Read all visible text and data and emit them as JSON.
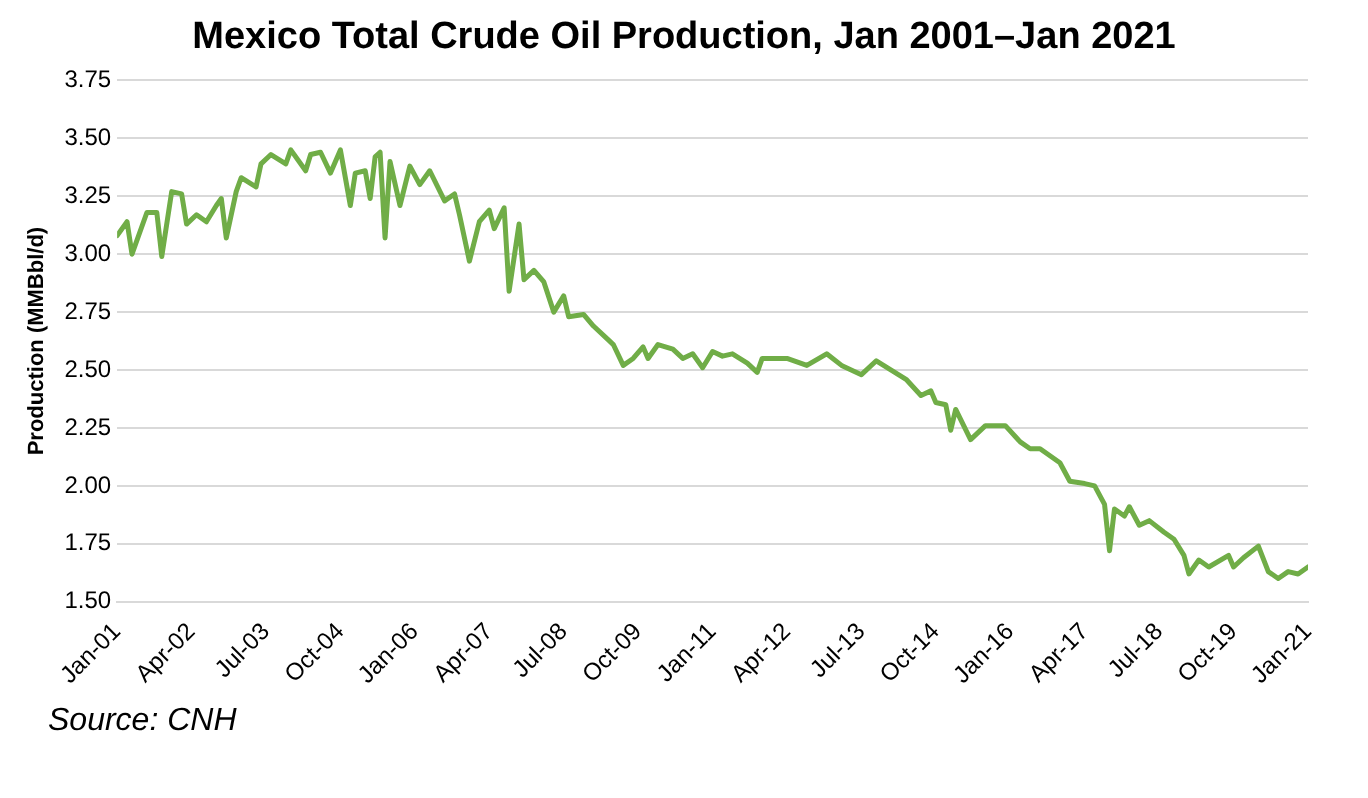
{
  "chart_data": {
    "type": "line",
    "title": "Mexico Total Crude Oil Production, Jan 2001–Jan 2021",
    "ylabel": "Production (MMBbl/d)",
    "annotations": [
      "Source: CNH"
    ],
    "grid": "y",
    "legend": false,
    "marker": "none",
    "line_style": "solid",
    "xlim": [
      "2001-01",
      "2021-01"
    ],
    "xticks": [
      {
        "value": "2001-01",
        "label": "Jan-01"
      },
      {
        "value": "2002-04",
        "label": "Apr-02"
      },
      {
        "value": "2003-07",
        "label": "Jul-03"
      },
      {
        "value": "2004-10",
        "label": "Oct-04"
      },
      {
        "value": "2006-01",
        "label": "Jan-06"
      },
      {
        "value": "2007-04",
        "label": "Apr-07"
      },
      {
        "value": "2008-07",
        "label": "Jul-08"
      },
      {
        "value": "2009-10",
        "label": "Oct-09"
      },
      {
        "value": "2011-01",
        "label": "Jan-11"
      },
      {
        "value": "2012-04",
        "label": "Apr-12"
      },
      {
        "value": "2013-07",
        "label": "Jul-13"
      },
      {
        "value": "2014-10",
        "label": "Oct-14"
      },
      {
        "value": "2016-01",
        "label": "Jan-16"
      },
      {
        "value": "2017-04",
        "label": "Apr-17"
      },
      {
        "value": "2018-07",
        "label": "Jul-18"
      },
      {
        "value": "2019-10",
        "label": "Oct-19"
      },
      {
        "value": "2021-01",
        "label": "Jan-21"
      }
    ],
    "ylim": [
      1.5,
      3.75
    ],
    "yticks": [
      {
        "value": 1.5,
        "label": "1.50"
      },
      {
        "value": 1.75,
        "label": "1.75"
      },
      {
        "value": 2,
        "label": "2.00"
      },
      {
        "value": 2.25,
        "label": "2.25"
      },
      {
        "value": 2.5,
        "label": "2.50"
      },
      {
        "value": 2.75,
        "label": "2.75"
      },
      {
        "value": 3,
        "label": "3.00"
      },
      {
        "value": 3.25,
        "label": "3.25"
      },
      {
        "value": 3.5,
        "label": "3.50"
      },
      {
        "value": 3.75,
        "label": "3.75"
      }
    ],
    "series": [
      {
        "color": "#70ad47",
        "x": [
          "2001-01",
          "2001-03",
          "2001-04",
          "2001-07",
          "2001-09",
          "2001-10",
          "2001-12",
          "2002-02",
          "2002-03",
          "2002-05",
          "2002-07",
          "2002-09",
          "2002-10",
          "2002-11",
          "2003-01",
          "2003-02",
          "2003-05",
          "2003-06",
          "2003-08",
          "2003-11",
          "2003-12",
          "2004-03",
          "2004-04",
          "2004-06",
          "2004-08",
          "2004-10",
          "2004-11",
          "2004-12",
          "2005-01",
          "2005-03",
          "2005-04",
          "2005-05",
          "2005-06",
          "2005-07",
          "2005-08",
          "2005-10",
          "2005-12",
          "2006-02",
          "2006-04",
          "2006-07",
          "2006-09",
          "2006-10",
          "2006-12",
          "2007-02",
          "2007-04",
          "2007-05",
          "2007-07",
          "2007-08",
          "2007-10",
          "2007-11",
          "2008-01",
          "2008-03",
          "2008-05",
          "2008-07",
          "2008-08",
          "2008-11",
          "2009-01",
          "2009-04",
          "2009-05",
          "2009-07",
          "2009-09",
          "2009-11",
          "2009-12",
          "2010-02",
          "2010-05",
          "2010-07",
          "2010-09",
          "2010-11",
          "2011-01",
          "2011-03",
          "2011-05",
          "2011-08",
          "2011-10",
          "2011-11",
          "2012-01",
          "2012-04",
          "2012-08",
          "2012-12",
          "2013-03",
          "2013-07",
          "2013-10",
          "2014-01",
          "2014-04",
          "2014-07",
          "2014-09",
          "2014-10",
          "2014-12",
          "2015-01",
          "2015-02",
          "2015-05",
          "2015-08",
          "2015-09",
          "2015-12",
          "2016-03",
          "2016-05",
          "2016-07",
          "2016-11",
          "2017-01",
          "2017-04",
          "2017-06",
          "2017-08",
          "2017-09",
          "2017-10",
          "2017-12",
          "2018-01",
          "2018-03",
          "2018-05",
          "2018-08",
          "2018-10",
          "2018-12",
          "2019-01",
          "2019-03",
          "2019-05",
          "2019-09",
          "2019-10",
          "2019-12",
          "2020-03",
          "2020-05",
          "2020-07",
          "2020-09",
          "2020-11",
          "2021-01"
        ],
        "values": [
          3.08,
          3.14,
          3.0,
          3.18,
          3.18,
          2.99,
          3.27,
          3.26,
          3.13,
          3.17,
          3.14,
          3.21,
          3.24,
          3.07,
          3.27,
          3.33,
          3.29,
          3.39,
          3.43,
          3.39,
          3.45,
          3.36,
          3.43,
          3.44,
          3.35,
          3.45,
          3.33,
          3.21,
          3.35,
          3.36,
          3.24,
          3.42,
          3.44,
          3.07,
          3.4,
          3.21,
          3.38,
          3.3,
          3.36,
          3.23,
          3.26,
          3.17,
          2.97,
          3.14,
          3.19,
          3.11,
          3.2,
          2.84,
          3.13,
          2.89,
          2.93,
          2.88,
          2.75,
          2.82,
          2.73,
          2.74,
          2.69,
          2.63,
          2.61,
          2.52,
          2.55,
          2.6,
          2.55,
          2.61,
          2.59,
          2.55,
          2.57,
          2.51,
          2.58,
          2.56,
          2.57,
          2.53,
          2.49,
          2.55,
          2.55,
          2.55,
          2.52,
          2.57,
          2.52,
          2.48,
          2.54,
          2.5,
          2.46,
          2.39,
          2.41,
          2.36,
          2.35,
          2.24,
          2.33,
          2.2,
          2.26,
          2.26,
          2.26,
          2.19,
          2.16,
          2.16,
          2.1,
          2.02,
          2.01,
          2.0,
          1.92,
          1.72,
          1.9,
          1.87,
          1.91,
          1.83,
          1.85,
          1.8,
          1.77,
          1.7,
          1.62,
          1.68,
          1.65,
          1.7,
          1.65,
          1.69,
          1.74,
          1.63,
          1.6,
          1.63,
          1.62,
          1.65
        ]
      }
    ]
  }
}
